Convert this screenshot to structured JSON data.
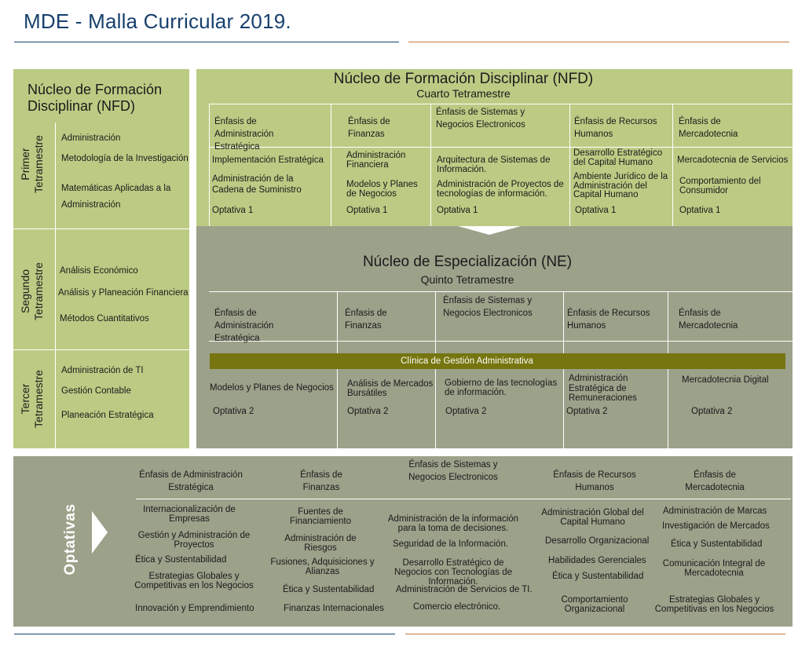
{
  "page_title": "MDE - Malla Curricular 2019.",
  "colors": {
    "title": "#17406d",
    "green": "#bccb84",
    "gray": "#9ca18a",
    "olive": "#76750f",
    "rule_blue": "#17406d",
    "rule_orange": "#c87a3a"
  },
  "nfd_left": {
    "header": "Núcleo de Formación Disciplinar (NFD)",
    "terms": [
      {
        "label": "Primer Tetramestre",
        "courses": [
          "Administración",
          "Metodología de la Investigación",
          "Matemáticas Aplicadas a la Administración"
        ]
      },
      {
        "label": "Segundo Tetramestre",
        "courses": [
          "Análisis Económico",
          "Análisis y Planeación Financiera",
          "Métodos Cuantitativos"
        ]
      },
      {
        "label": "Tercer Tetramestre",
        "courses": [
          "Administración de TI",
          "Gestión Contable",
          "Planeación Estratégica"
        ]
      }
    ]
  },
  "nfd_right": {
    "header": "Núcleo de Formación Disciplinar (NFD)",
    "subheader": "Cuarto Tetramestre",
    "emphases": [
      "Énfasis de Administración Estratégica",
      "Énfasis de Finanzas",
      "Énfasis de Sistemas y Negocios Electronicos",
      "Énfasis de Recursos Humanos",
      "Énfasis de Mercadotecnia"
    ],
    "courses": [
      [
        "Implementación Estratégica",
        "Administración de la Cadena de Suministro",
        "Optativa 1"
      ],
      [
        "Administración Financiera",
        "Modelos y Planes de Negocios",
        "Optativa 1"
      ],
      [
        "Arquitectura de Sistemas de Información.",
        "Administración de Proyectos de tecnologías de información.",
        "Optativa 1"
      ],
      [
        "Desarrollo Estratégico del Capital Humano",
        "Ambiente Jurídico de la Administración del Capital Humano",
        "Optativa 1"
      ],
      [
        "Mercadotecnia de Servicios",
        "Comportamiento del Consumidor",
        "Optativa 1"
      ]
    ]
  },
  "ne": {
    "header": "Núcleo de Especialización (NE)",
    "subheader": "Quinto Tetramestre",
    "emphases": [
      "Énfasis de Administración Estratégica",
      "Énfasis de Finanzas",
      "Énfasis de Sistemas y Negocios Electronicos",
      "Énfasis de Recursos Humanos",
      "Énfasis de Mercadotecnia"
    ],
    "clinic": "Clínica de Gestión Administrativa",
    "courses": [
      [
        "Modelos y Planes de Negocios",
        "Optativa 2"
      ],
      [
        "Análisis de Mercados Bursátiles",
        "Optativa 2"
      ],
      [
        "Gobierno de las tecnologías de información.",
        "Optativa 2"
      ],
      [
        "Administración Estratégica de Remuneraciones",
        "Optativa 2"
      ],
      [
        "Mercadotecnia Digital",
        "Optativa 2"
      ]
    ]
  },
  "optativas": {
    "label": "Optativas",
    "emphases": [
      "Énfasis de Administración Estratégica",
      "Énfasis de Finanzas",
      "Énfasis de Sistemas y Negocios Electronicos",
      "Énfasis de Recursos Humanos",
      "Énfasis de Mercadotecnia"
    ],
    "courses": [
      [
        "Internacionalización de Empresas",
        "Gestión y Administración de Proyectos",
        "Ética y Sustentabilidad",
        "Estrategias Globales y Competitivas en los Negocios",
        "Innovación y Emprendimiento"
      ],
      [
        "Fuentes de Financiamiento",
        "Administración de Riesgos",
        "Fusiones, Adquisiciones y Alianzas",
        "Ética y Sustentabilidad",
        "Finanzas Internacionales"
      ],
      [
        "Administración de la información para la toma de decisiones.",
        "Seguridad de la Información.",
        "Desarrollo Estratégico de Negocios con Tecnologías de Información.",
        "Administración de Servicios de TI.",
        "Comercio electrónico."
      ],
      [
        "Administración Global del Capital Humano",
        "Desarrollo Organizacional",
        "Habilidades Gerenciales",
        "Ética y Sustentabilidad",
        "Comportamiento Organizacional"
      ],
      [
        "Administración de Marcas",
        "Investigación de Mercados",
        "Ética y Sustentabilidad",
        "Comunicación Integral de Mercadotecnia",
        "Estrategias Globales y Competitivas en los Negocios"
      ]
    ]
  }
}
